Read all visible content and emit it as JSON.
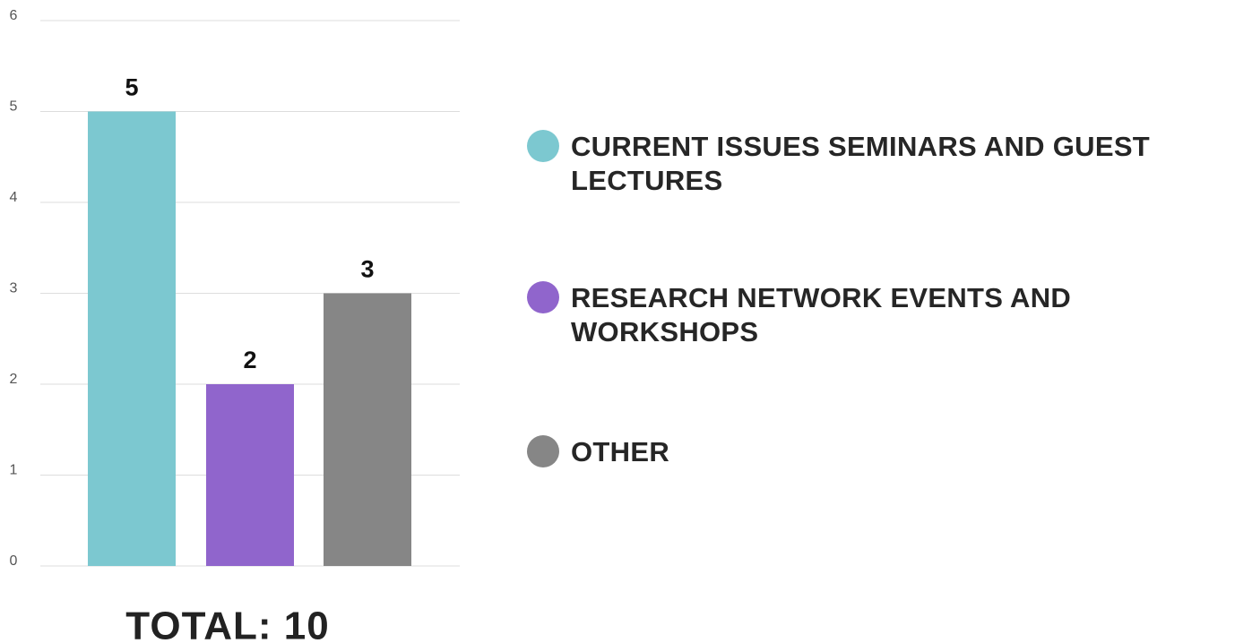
{
  "chart_data": {
    "type": "bar",
    "categories": [
      "CURRENT ISSUES SEMINARS AND GUEST LECTURES",
      "RESEARCH NETWORK EVENTS AND WORKSHOPS",
      "OTHER"
    ],
    "values": [
      5,
      2,
      3
    ],
    "colors": [
      "#7cc8d0",
      "#9065cc",
      "#868686"
    ],
    "ylim": [
      0,
      6
    ],
    "yticks": [
      0,
      1,
      2,
      3,
      4,
      5,
      6
    ],
    "grid": true,
    "legend": "right",
    "annotation": "TOTAL: 10"
  }
}
